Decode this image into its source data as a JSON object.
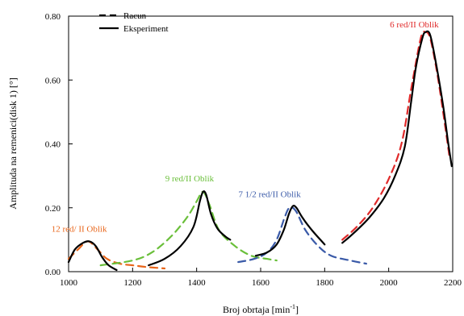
{
  "chart_data": {
    "type": "line",
    "title": "",
    "xlabel": "Broj obrtaja [min",
    "xlabel_sup": "-1",
    "xlabel_end": "]",
    "ylabel": "Amplituda na remenici(disk 1) [°]",
    "xlim": [
      1000,
      2200
    ],
    "ylim": [
      0,
      0.8
    ],
    "xticks": [
      1000,
      1200,
      1400,
      1600,
      1800,
      2000,
      2200
    ],
    "xtick_labels": [
      "1000",
      "1200",
      "1400",
      "1600",
      "1800",
      "2000",
      "2200"
    ],
    "yticks": [
      0,
      0.2,
      0.4,
      0.6,
      0.8
    ],
    "ytick_labels": [
      "0.00",
      "0.20",
      "0.40",
      "0.60",
      "0.80"
    ],
    "grid": false,
    "legend": {
      "position": "top-left",
      "entries": [
        {
          "label": "Racun",
          "style": "dashed"
        },
        {
          "label": "Eksperiment",
          "style": "solid"
        }
      ]
    },
    "annotations": [
      {
        "text": "12 red/ II Oblik",
        "x": 1033,
        "y": 0.125,
        "color": "#e8651a"
      },
      {
        "text": "9 red/II Oblik",
        "x": 1378,
        "y": 0.283,
        "color": "#6abf3a"
      },
      {
        "text": "7 1/2 red/II Oblik",
        "x": 1628,
        "y": 0.233,
        "color": "#3a5aa8"
      },
      {
        "text": "6 red/II Oblik",
        "x": 2080,
        "y": 0.765,
        "color": "#e02a2a"
      }
    ],
    "series": [
      {
        "role": "racun",
        "color": "#e8651a",
        "style": "dashed",
        "points": [
          [
            1000,
            0.04
          ],
          [
            1030,
            0.07
          ],
          [
            1060,
            0.095
          ],
          [
            1090,
            0.07
          ],
          [
            1120,
            0.04
          ],
          [
            1160,
            0.025
          ],
          [
            1200,
            0.02
          ],
          [
            1240,
            0.015
          ],
          [
            1300,
            0.01
          ]
        ]
      },
      {
        "role": "racun",
        "color": "#6abf3a",
        "style": "dashed",
        "points": [
          [
            1100,
            0.02
          ],
          [
            1200,
            0.035
          ],
          [
            1260,
            0.06
          ],
          [
            1320,
            0.11
          ],
          [
            1370,
            0.17
          ],
          [
            1400,
            0.22
          ],
          [
            1420,
            0.25
          ],
          [
            1440,
            0.21
          ],
          [
            1470,
            0.13
          ],
          [
            1520,
            0.08
          ],
          [
            1570,
            0.05
          ],
          [
            1620,
            0.04
          ],
          [
            1650,
            0.035
          ]
        ]
      },
      {
        "role": "racun",
        "color": "#3a5aa8",
        "style": "dashed",
        "points": [
          [
            1530,
            0.03
          ],
          [
            1580,
            0.04
          ],
          [
            1620,
            0.06
          ],
          [
            1650,
            0.1
          ],
          [
            1675,
            0.17
          ],
          [
            1690,
            0.2
          ],
          [
            1710,
            0.19
          ],
          [
            1740,
            0.13
          ],
          [
            1780,
            0.08
          ],
          [
            1820,
            0.05
          ],
          [
            1880,
            0.035
          ],
          [
            1930,
            0.025
          ]
        ]
      },
      {
        "role": "racun",
        "color": "#e02a2a",
        "style": "dashed",
        "points": [
          [
            1855,
            0.1
          ],
          [
            1900,
            0.14
          ],
          [
            1950,
            0.2
          ],
          [
            2000,
            0.29
          ],
          [
            2040,
            0.4
          ],
          [
            2070,
            0.57
          ],
          [
            2100,
            0.73
          ],
          [
            2115,
            0.75
          ],
          [
            2130,
            0.73
          ],
          [
            2150,
            0.63
          ],
          [
            2170,
            0.5
          ],
          [
            2190,
            0.36
          ]
        ]
      },
      {
        "role": "eksperiment",
        "color": "#000000",
        "style": "solid",
        "points": [
          [
            1000,
            0.03
          ],
          [
            1020,
            0.07
          ],
          [
            1045,
            0.09
          ],
          [
            1065,
            0.095
          ],
          [
            1085,
            0.08
          ],
          [
            1105,
            0.045
          ],
          [
            1125,
            0.02
          ],
          [
            1150,
            0.005
          ]
        ]
      },
      {
        "role": "eksperiment",
        "color": "#000000",
        "style": "solid",
        "points": [
          [
            1250,
            0.02
          ],
          [
            1300,
            0.04
          ],
          [
            1350,
            0.08
          ],
          [
            1390,
            0.14
          ],
          [
            1410,
            0.22
          ],
          [
            1420,
            0.25
          ],
          [
            1430,
            0.24
          ],
          [
            1445,
            0.18
          ],
          [
            1465,
            0.135
          ],
          [
            1490,
            0.11
          ],
          [
            1505,
            0.1
          ]
        ]
      },
      {
        "role": "eksperiment",
        "color": "#000000",
        "style": "solid",
        "points": [
          [
            1585,
            0.05
          ],
          [
            1620,
            0.06
          ],
          [
            1650,
            0.085
          ],
          [
            1672,
            0.13
          ],
          [
            1688,
            0.18
          ],
          [
            1700,
            0.205
          ],
          [
            1712,
            0.2
          ],
          [
            1730,
            0.17
          ],
          [
            1760,
            0.13
          ],
          [
            1800,
            0.085
          ]
        ]
      },
      {
        "role": "eksperiment",
        "color": "#000000",
        "style": "solid",
        "points": [
          [
            1855,
            0.09
          ],
          [
            1890,
            0.12
          ],
          [
            1940,
            0.17
          ],
          [
            1985,
            0.23
          ],
          [
            2020,
            0.3
          ],
          [
            2050,
            0.39
          ],
          [
            2070,
            0.53
          ],
          [
            2085,
            0.64
          ],
          [
            2105,
            0.73
          ],
          [
            2115,
            0.75
          ],
          [
            2130,
            0.74
          ],
          [
            2150,
            0.64
          ],
          [
            2170,
            0.52
          ],
          [
            2185,
            0.41
          ],
          [
            2197,
            0.33
          ]
        ]
      }
    ]
  }
}
